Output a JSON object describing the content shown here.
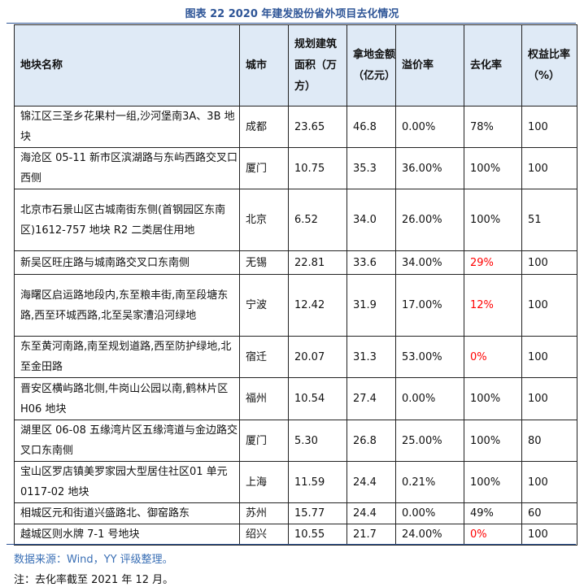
{
  "title": "图表 22 2020 年建发股份省外项目去化情况",
  "headers": [
    "地块名称",
    "城市",
    "规划建筑面积（万方）",
    "拿地金额（亿元）",
    "溢价率",
    "去化率",
    "权益比率（%）"
  ],
  "rows": [
    {
      "name": "锦江区三圣乡花果村一组,沙河堡南3A、3B 地块",
      "city": "成都",
      "area": "23.65",
      "amount": "46.8",
      "premium": "0.00%",
      "sellthrough": "78%",
      "equity": "100",
      "highlight": false
    },
    {
      "name": "海沧区 05-11 新市区滨湖路与东屿西路交叉口西侧",
      "city": "厦门",
      "area": "10.75",
      "amount": "35.3",
      "premium": "36.00%",
      "sellthrough": "100%",
      "equity": "100",
      "highlight": false
    },
    {
      "name": "北京市石景山区古城南街东侧(首钢园区东南区)1612-757 地块 R2 二类居住用地",
      "city": "北京",
      "area": "6.52",
      "amount": "34.0",
      "premium": "26.00%",
      "sellthrough": "100%",
      "equity": "51",
      "highlight": false
    },
    {
      "name": "新吴区旺庄路与城南路交叉口东南侧",
      "city": "无锡",
      "area": "22.81",
      "amount": "33.6",
      "premium": "34.00%",
      "sellthrough": "29%",
      "equity": "100",
      "highlight": true
    },
    {
      "name": "海曙区启运路地段内,东至粮丰街,南至段塘东路,西至环城西路,北至吴家漕沿河绿地",
      "city": "宁波",
      "area": "12.42",
      "amount": "31.9",
      "premium": "17.00%",
      "sellthrough": "12%",
      "equity": "100",
      "highlight": true
    },
    {
      "name": "东至黄河南路,南至规划道路,西至防护绿地,北至金田路",
      "city": "宿迁",
      "area": "20.07",
      "amount": "31.3",
      "premium": "53.00%",
      "sellthrough": "0%",
      "equity": "100",
      "highlight": true
    },
    {
      "name": "晋安区横屿路北侧,牛岗山公园以南,鹤林片区 H06 地块",
      "city": "福州",
      "area": "10.54",
      "amount": "27.4",
      "premium": "0.00%",
      "sellthrough": "100%",
      "equity": "100",
      "highlight": false
    },
    {
      "name": "湖里区 06-08 五缘湾片区五缘湾道与金边路交叉口东南侧",
      "city": "厦门",
      "area": "5.30",
      "amount": "26.8",
      "premium": "25.00%",
      "sellthrough": "100%",
      "equity": "80",
      "highlight": false
    },
    {
      "name": "宝山区罗店镇美罗家园大型居住社区01 单元 0117-02 地块",
      "city": "上海",
      "area": "11.59",
      "amount": "24.4",
      "premium": "0.21%",
      "sellthrough": "100%",
      "equity": "100",
      "highlight": false
    },
    {
      "name": "相城区元和街道兴盛路北、御窑路东",
      "city": "苏州",
      "area": "15.77",
      "amount": "24.4",
      "premium": "0.00%",
      "sellthrough": "49%",
      "equity": "60",
      "highlight": false
    },
    {
      "name": "越城区则水牌 7-1 号地块",
      "city": "绍兴",
      "area": "10.55",
      "amount": "21.7",
      "premium": "24.00%",
      "sellthrough": "0%",
      "equity": "100",
      "highlight": true
    }
  ],
  "source": "数据来源：Wind，YY 评级整理。",
  "note": "注：去化率截至 2021 年 12 月。",
  "colors": {
    "title": "#2e5597",
    "header_bg": "#dfeaf6",
    "highlight": "#ff0000",
    "source": "#3a6fb5"
  }
}
